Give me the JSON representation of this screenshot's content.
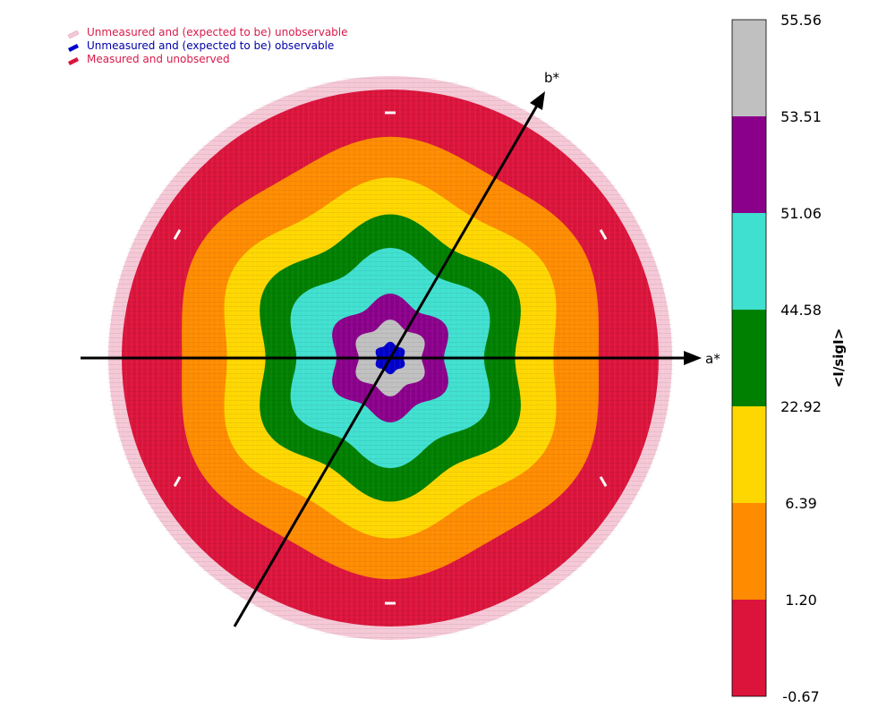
{
  "chart_data": {
    "type": "heatmap",
    "subtype": "reciprocal-space slice (hexagonal lattice)",
    "axes": [
      {
        "label": "a*",
        "angle_deg": 0
      },
      {
        "label": "b*",
        "angle_deg": 60
      }
    ],
    "legend": {
      "placement": "top-left",
      "entries": [
        {
          "label": "Unmeasured and (expected to be) unobservable",
          "color": "#f5c8d6",
          "text_color": "#d81b4a"
        },
        {
          "label": "Unmeasured and (expected to be) observable",
          "color": "#0000cc",
          "text_color": "#0000aa"
        },
        {
          "label": "Measured and unobserved",
          "color": "#dc143c",
          "text_color": "#d81b4a"
        }
      ]
    },
    "colorbar": {
      "title": "<I/sigI>",
      "placement": "right",
      "tick_labels": [
        "55.56",
        "53.51",
        "51.06",
        "44.58",
        "22.92",
        "6.39",
        "1.20",
        "-0.67"
      ],
      "bins": [
        {
          "lower": "53.51",
          "upper": "55.56",
          "color": "#c0c0c0"
        },
        {
          "lower": "51.06",
          "upper": "53.51",
          "color": "#8b008b"
        },
        {
          "lower": "44.58",
          "upper": "51.06",
          "color": "#40e0d0"
        },
        {
          "lower": "22.92",
          "upper": "44.58",
          "color": "#008000"
        },
        {
          "lower": "6.39",
          "upper": "22.92",
          "color": "#ffd700"
        },
        {
          "lower": "1.20",
          "upper": "6.39",
          "color": "#ff8c00"
        },
        {
          "lower": "-0.67",
          "upper": "1.20",
          "color": "#dc143c"
        }
      ]
    },
    "resolution_shells": [
      {
        "bin_index": 0,
        "outer_radius_fraction": 1.0
      },
      {
        "bin_index": 1,
        "outer_radius_fraction": 0.8
      },
      {
        "bin_index": 2,
        "outer_radius_fraction": 0.64
      },
      {
        "bin_index": 3,
        "outer_radius_fraction": 0.5
      },
      {
        "bin_index": 4,
        "outer_radius_fraction": 0.38
      },
      {
        "bin_index": 5,
        "outer_radius_fraction": 0.22
      },
      {
        "bin_index": 6,
        "outer_radius_fraction": 0.13
      },
      {
        "bin_index": 7,
        "outer_radius_fraction": 0.055
      }
    ],
    "outer_unobservable_fraction": 1.05
  }
}
